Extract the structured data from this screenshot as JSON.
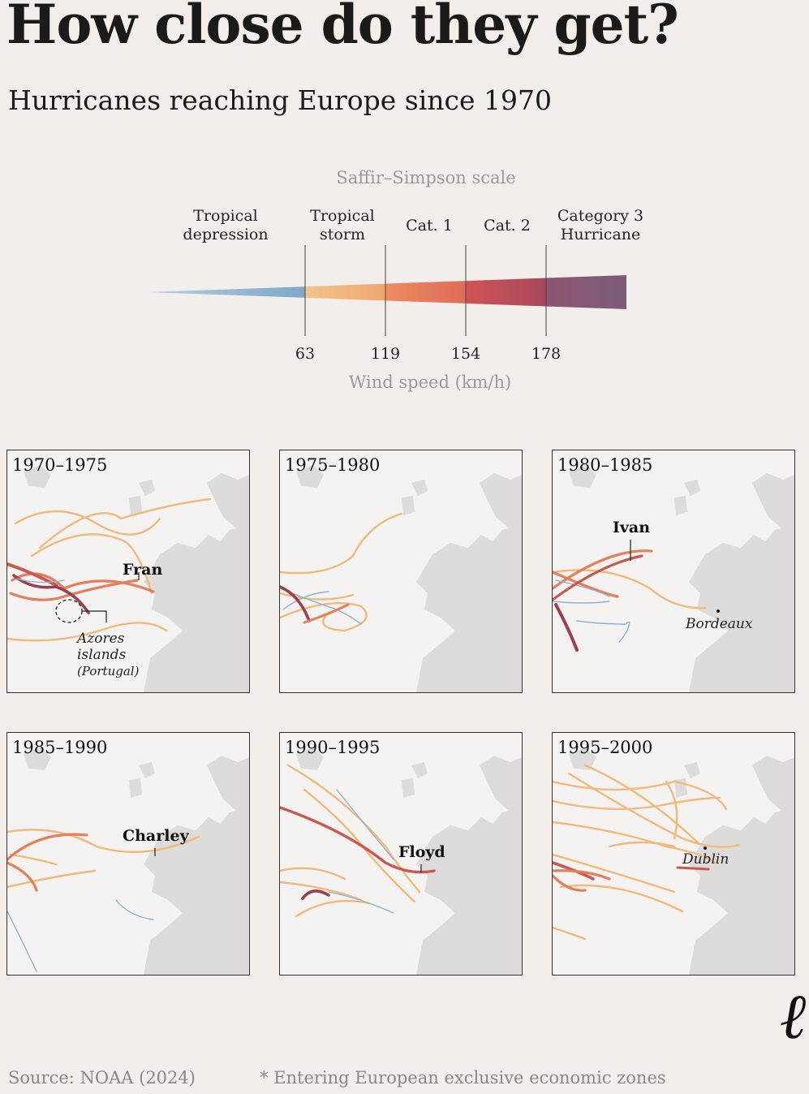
{
  "title": "How close do they get?",
  "subtitle": "Hurricanes reaching Europe since 1970",
  "scale": {
    "title": "Saffir–Simpson scale",
    "categories": [
      {
        "line1": "Tropical",
        "line2": "depression"
      },
      {
        "line1": "Tropical",
        "line2": "storm"
      },
      {
        "line1": "Cat. 1",
        "line2": ""
      },
      {
        "line1": "Cat. 2",
        "line2": ""
      },
      {
        "line1": "Category 3",
        "line2": "Hurricane"
      }
    ],
    "thresholds": [
      "63",
      "119",
      "154",
      "178"
    ],
    "axis_label": "Wind speed (km/h)",
    "colors": [
      "#8fb3cf",
      "#f2b97c",
      "#e57f5b",
      "#b9475b",
      "#7d5c75"
    ]
  },
  "panels": [
    {
      "period": "1970–1975",
      "storm": "Fran",
      "place": "Azores",
      "place2": "islands",
      "place3": "(Portugal)"
    },
    {
      "period": "1975–1980"
    },
    {
      "period": "1980–1985",
      "storm": "Ivan",
      "place": "Bordeaux"
    },
    {
      "period": "1985–1990",
      "storm": "Charley"
    },
    {
      "period": "1990–1995",
      "storm": "Floyd"
    },
    {
      "period": "1995–2000",
      "place": "Dublin"
    }
  ],
  "source": "Source: NOAA (2024)",
  "footnote": "* Entering European exclusive economic zones",
  "logo": "ℓ",
  "track_colors": {
    "depression": "#8fb3cf",
    "storm": "#f2b97c",
    "cat1": "#e57f5b",
    "cat2": "#c9584f",
    "cat3": "#9c3f4f"
  }
}
